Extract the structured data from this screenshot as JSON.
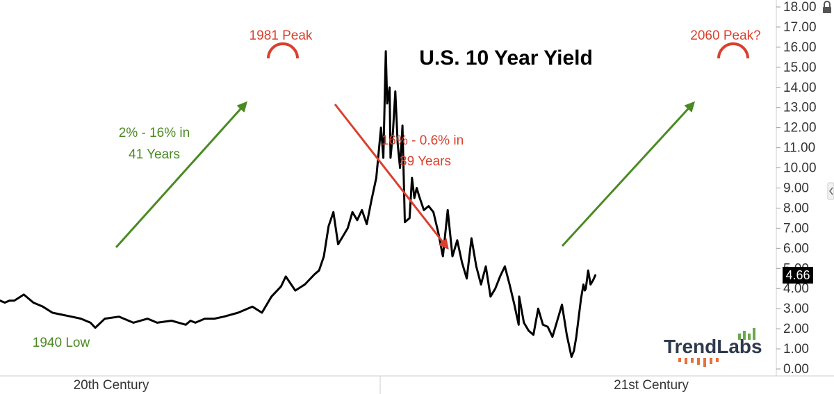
{
  "chart_data": {
    "type": "line",
    "title": "U.S. 10 Year Yield",
    "x_range": [
      1900,
      2063
    ],
    "ylim": [
      0,
      18
    ],
    "y_ticks": [
      0,
      1,
      2,
      3,
      4,
      5,
      6,
      7,
      8,
      9,
      10,
      11,
      12,
      13,
      14,
      15,
      16,
      17,
      18
    ],
    "y_tick_labels": [
      "0.00",
      "1.00",
      "2.00",
      "3.00",
      "4.00",
      "5.00",
      "6.00",
      "7.00",
      "8.00",
      "9.00",
      "10.00",
      "11.00",
      "12.00",
      "13.00",
      "14.00",
      "15.00",
      "16.00",
      "17.00",
      "18.00"
    ],
    "last_value_label": "4.66",
    "series": [
      {
        "color": "#000000",
        "x": [
          1900,
          1901,
          1902,
          1903,
          1905,
          1907,
          1909,
          1911,
          1913,
          1915,
          1917,
          1919,
          1920,
          1922,
          1925,
          1928,
          1931,
          1933,
          1936,
          1939,
          1940,
          1941,
          1943,
          1945,
          1947,
          1950,
          1953,
          1955,
          1957,
          1959,
          1960,
          1962,
          1964,
          1966,
          1967,
          1968,
          1969,
          1970,
          1971,
          1972,
          1973,
          1974,
          1975,
          1976,
          1977,
          1978,
          1979,
          1980,
          1980.5,
          1981,
          1981.3,
          1981.8,
          1982,
          1982.5,
          1983,
          1983.5,
          1984,
          1984.5,
          1985,
          1986,
          1986.5,
          1987,
          1987.5,
          1988,
          1989,
          1990,
          1991,
          1992,
          1993,
          1994,
          1995,
          1996,
          1997,
          1998,
          1999,
          2000,
          2001,
          2002,
          2003,
          2004,
          2005,
          2006,
          2007,
          2008,
          2008.9,
          2009,
          2010,
          2011,
          2012,
          2013,
          2014,
          2015,
          2016,
          2017,
          2018,
          2019,
          2020,
          2020.5,
          2021,
          2022,
          2022.5,
          2022.8,
          2023,
          2023.5,
          2024,
          2024.5,
          2025
        ],
        "values": [
          3.4,
          3.3,
          3.4,
          3.4,
          3.7,
          3.3,
          3.1,
          2.8,
          2.7,
          2.6,
          2.5,
          2.3,
          2.05,
          2.5,
          2.6,
          2.3,
          2.5,
          2.3,
          2.4,
          2.2,
          2.4,
          2.3,
          2.5,
          2.5,
          2.6,
          2.8,
          3.1,
          2.8,
          3.6,
          4.1,
          4.6,
          3.9,
          4.2,
          4.7,
          4.9,
          5.6,
          7.1,
          7.8,
          6.2,
          6.6,
          7.0,
          7.8,
          7.4,
          7.9,
          7.2,
          8.4,
          9.5,
          12.0,
          10.5,
          15.8,
          13.2,
          14.0,
          10.5,
          11.8,
          13.8,
          11.2,
          10.0,
          12.1,
          7.3,
          7.5,
          9.5,
          8.5,
          9.0,
          8.6,
          7.9,
          8.1,
          7.8,
          6.8,
          5.6,
          7.9,
          5.6,
          6.4,
          5.3,
          4.5,
          6.5,
          5.1,
          4.2,
          5.1,
          3.6,
          4.0,
          4.6,
          5.1,
          4.2,
          3.2,
          2.2,
          3.6,
          2.3,
          1.9,
          1.7,
          3.0,
          2.2,
          2.1,
          1.6,
          2.4,
          3.2,
          1.7,
          0.6,
          0.9,
          1.6,
          3.5,
          4.2,
          3.9,
          4.0,
          4.9,
          4.2,
          4.4,
          4.66
        ]
      }
    ],
    "annotations": [
      {
        "text": "1981 Peak",
        "color": "#d9412e"
      },
      {
        "text": "2060 Peak?",
        "color": "#d9412e"
      },
      {
        "lines": [
          "2% - 16% in",
          "41 Years"
        ],
        "color": "#4a8a22"
      },
      {
        "lines": [
          "16% - 0.6% in",
          "39 Years"
        ],
        "color": "#d9412e"
      },
      {
        "text": "1940 Low",
        "color": "#4a8a22"
      }
    ],
    "x_band_labels": [
      "20th Century",
      "21st Century"
    ],
    "colors": {
      "up_arrow": "#4a8a22",
      "down_arrow": "#d9412e",
      "line": "#000000",
      "last_value_bg": "#000000"
    }
  },
  "logo": {
    "text": "TrendLabs"
  },
  "icons": {
    "lock": "lock-icon",
    "collapse": "chevron-left-icon"
  }
}
